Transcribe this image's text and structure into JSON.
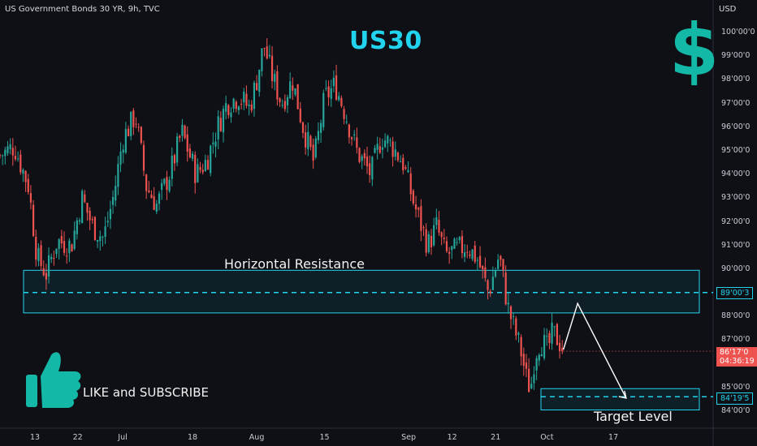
{
  "header": {
    "symbol": "US Government Bonds 30 YR, 9h, TVC",
    "currency": "USD"
  },
  "title": "US30",
  "dollar_glyph": "$",
  "annotations": {
    "resistance": "Horizontal Resistance",
    "like": "LIKE and SUBSCRIBE",
    "target": "Target Level"
  },
  "badges": {
    "resistance": "89'00'3",
    "price": "86'17'0",
    "countdown": "04:36:19",
    "target": "84'19'5"
  },
  "colors": {
    "up": "#26a69a",
    "down": "#ef5350",
    "zone": "#22d3ee",
    "background": "#0e1016"
  },
  "chart_data": {
    "type": "candlestick",
    "title": "US30",
    "xlabel": "",
    "ylabel": "",
    "ylim": [
      83.8,
      100.6
    ],
    "y_ticks": [
      "84'00'0",
      "85'00'0",
      "86'00'0",
      "87'00'0",
      "88'00'0",
      "89'00'0",
      "90'00'0",
      "91'00'0",
      "92'00'0",
      "93'00'0",
      "94'00'0",
      "95'00'0",
      "96'00'0",
      "97'00'0",
      "98'00'0",
      "99'00'0",
      "100'00'0"
    ],
    "y_tick_values": [
      84,
      85,
      86,
      87,
      88,
      89,
      90,
      91,
      92,
      93,
      94,
      95,
      96,
      97,
      98,
      99,
      100
    ],
    "x_ticks": [
      "13",
      "22",
      "Jul",
      "18",
      "Aug",
      "15",
      "Sep",
      "12",
      "21",
      "Oct",
      "17"
    ],
    "x_tick_positions": [
      0.049,
      0.109,
      0.172,
      0.27,
      0.36,
      0.455,
      0.573,
      0.634,
      0.695,
      0.767,
      0.86
    ],
    "close_path": [
      [
        0.0,
        94.8
      ],
      [
        0.02,
        95.2
      ],
      [
        0.04,
        93.5
      ],
      [
        0.052,
        90.5
      ],
      [
        0.065,
        89.8
      ],
      [
        0.08,
        91.2
      ],
      [
        0.1,
        91.0
      ],
      [
        0.115,
        93.0
      ],
      [
        0.13,
        91.8
      ],
      [
        0.145,
        91.3
      ],
      [
        0.16,
        93.2
      ],
      [
        0.172,
        95.5
      ],
      [
        0.19,
        96.5
      ],
      [
        0.205,
        93.5
      ],
      [
        0.22,
        92.7
      ],
      [
        0.24,
        94.2
      ],
      [
        0.255,
        95.8
      ],
      [
        0.275,
        94.0
      ],
      [
        0.29,
        94.6
      ],
      [
        0.305,
        96.0
      ],
      [
        0.318,
        97.0
      ],
      [
        0.335,
        97.3
      ],
      [
        0.35,
        96.8
      ],
      [
        0.36,
        98.0
      ],
      [
        0.37,
        99.5
      ],
      [
        0.38,
        98.3
      ],
      [
        0.395,
        97.0
      ],
      [
        0.41,
        98.0
      ],
      [
        0.425,
        96.0
      ],
      [
        0.44,
        94.5
      ],
      [
        0.455,
        97.2
      ],
      [
        0.47,
        97.8
      ],
      [
        0.485,
        96.5
      ],
      [
        0.5,
        95.0
      ],
      [
        0.52,
        94.0
      ],
      [
        0.535,
        95.6
      ],
      [
        0.55,
        95.2
      ],
      [
        0.565,
        94.5
      ],
      [
        0.58,
        92.8
      ],
      [
        0.6,
        91.0
      ],
      [
        0.612,
        91.8
      ],
      [
        0.625,
        90.6
      ],
      [
        0.64,
        90.8
      ],
      [
        0.655,
        91.0
      ],
      [
        0.67,
        90.4
      ],
      [
        0.685,
        89.0
      ],
      [
        0.7,
        90.6
      ],
      [
        0.712,
        88.4
      ],
      [
        0.722,
        87.4
      ],
      [
        0.73,
        86.6
      ],
      [
        0.738,
        85.4
      ],
      [
        0.744,
        84.9
      ],
      [
        0.75,
        86.4
      ],
      [
        0.758,
        87.0
      ],
      [
        0.768,
        86.6
      ],
      [
        0.775,
        87.3
      ],
      [
        0.783,
        87.0
      ],
      [
        0.79,
        86.6
      ]
    ],
    "resistance_zone": {
      "low": 88.15,
      "high": 89.95,
      "level": 89.01
    },
    "target_zone": {
      "low": 84.05,
      "high": 84.95,
      "level": 84.61
    },
    "projection": [
      [
        0.79,
        86.6
      ],
      [
        0.81,
        88.55
      ],
      [
        0.878,
        84.55
      ]
    ],
    "last_price": 86.53
  }
}
